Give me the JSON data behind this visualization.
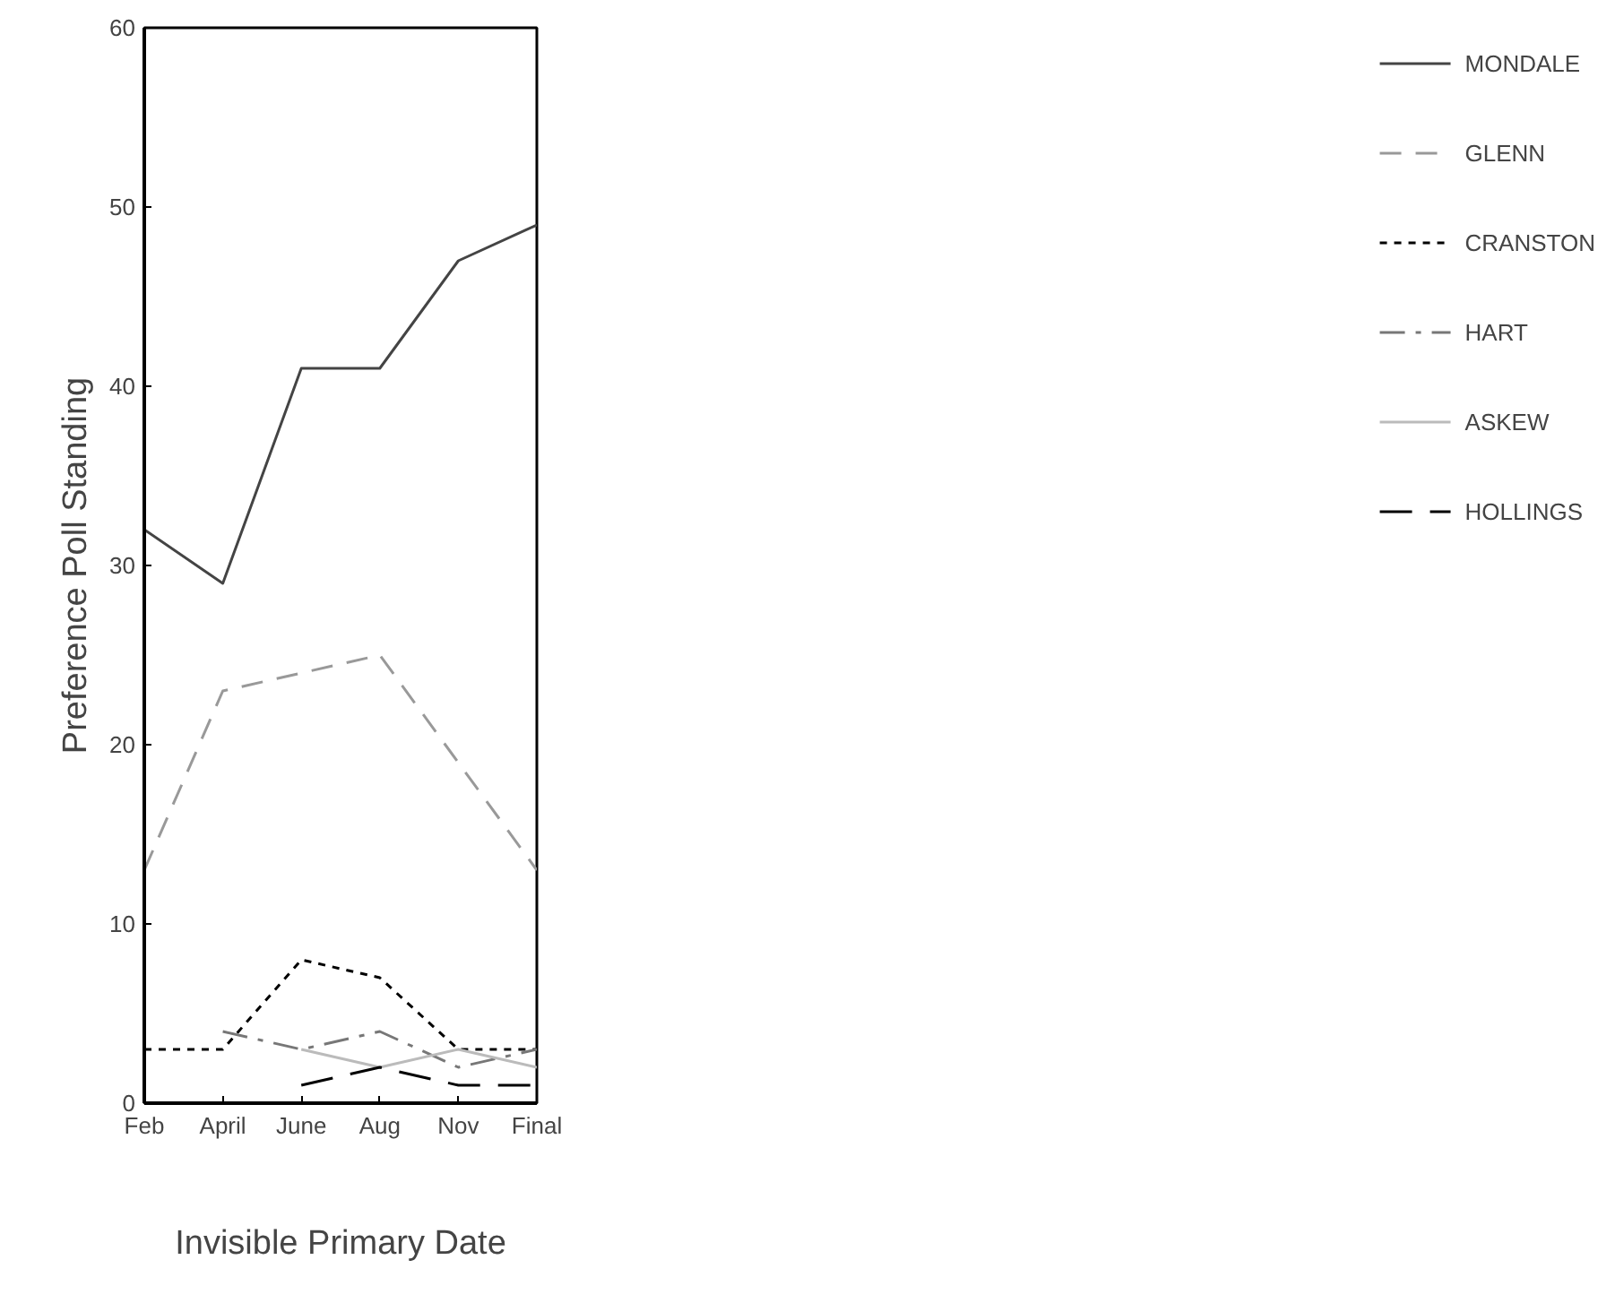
{
  "chart_data": {
    "type": "line",
    "xlabel": "Invisible Primary Date",
    "ylabel": "Preference Poll Standing",
    "categories": [
      "Feb",
      "April",
      "June",
      "Aug",
      "Nov",
      "Final"
    ],
    "ylim": [
      0,
      60
    ],
    "yticks": [
      0,
      10,
      20,
      30,
      40,
      50,
      60
    ],
    "grid": false,
    "legend": "right",
    "marker": "none",
    "series": [
      {
        "name": "MONDALE",
        "color": "#444444",
        "line_style": "solid",
        "values": [
          32,
          29,
          41,
          41,
          47,
          49
        ]
      },
      {
        "name": "GLENN",
        "color": "#999999",
        "line_style": "dashed",
        "values": [
          13,
          23,
          24,
          25,
          19,
          13
        ]
      },
      {
        "name": "CRANSTON",
        "color": "#000000",
        "line_style": "dotted",
        "values": [
          3,
          3,
          8,
          7,
          3,
          3
        ]
      },
      {
        "name": "HART",
        "color": "#777777",
        "line_style": "dashdot",
        "values": [
          null,
          4,
          3,
          4,
          2,
          3
        ]
      },
      {
        "name": "ASKEW",
        "color": "#bbbbbb",
        "line_style": "solid",
        "values": [
          null,
          null,
          3,
          2,
          3,
          2
        ]
      },
      {
        "name": "HOLLINGS",
        "color": "#000000",
        "line_style": "longdash",
        "values": [
          null,
          null,
          1,
          2,
          1,
          1
        ]
      }
    ]
  }
}
